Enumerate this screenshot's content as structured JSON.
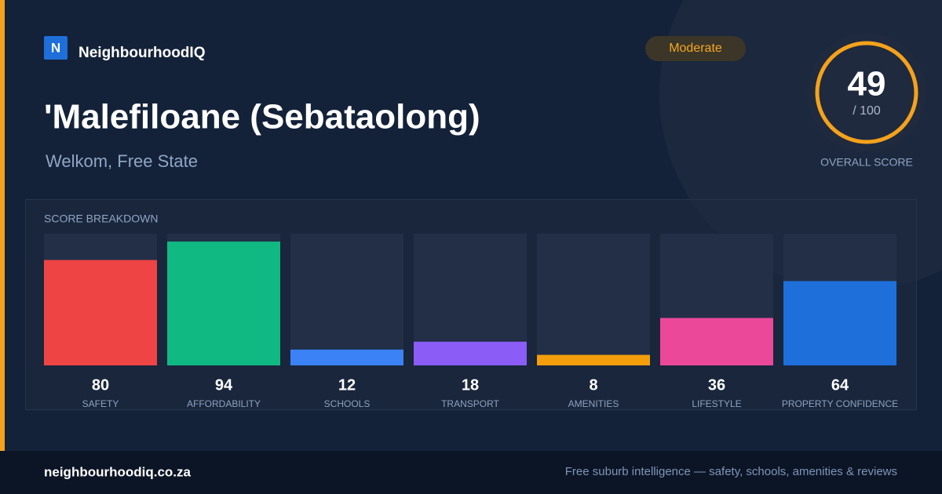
{
  "header": {
    "logo": "N",
    "brand": "NeighbourhoodIQ",
    "badge": "Moderate",
    "title": "'Malefiloane (Sebataolong)",
    "subtitle": "Welkom, Free State"
  },
  "overall": {
    "score": 49,
    "max": {
      "value": 100,
      "label": "/ 100"
    },
    "label": "OVERALL SCORE"
  },
  "chart_data": {
    "type": "bar",
    "title": "SCORE BREAKDOWN",
    "categories": [
      "SAFETY",
      "AFFORDABILITY",
      "SCHOOLS",
      "TRANSPORT",
      "AMENITIES",
      "LIFESTYLE",
      "PROPERTY CONFIDENCE"
    ],
    "values": [
      80,
      94,
      12,
      18,
      8,
      36,
      64
    ],
    "colors": [
      "#ef4444",
      "#10b981",
      "#3b82f6",
      "#8b5cf6",
      "#f59e0b",
      "#ec4899",
      "#1f6fdb"
    ],
    "ylim": [
      0,
      100
    ]
  },
  "footer": {
    "site": "neighbourhoodiq.co.za",
    "tagline": "Free suburb intelligence — safety, schools, amenities & reviews"
  }
}
